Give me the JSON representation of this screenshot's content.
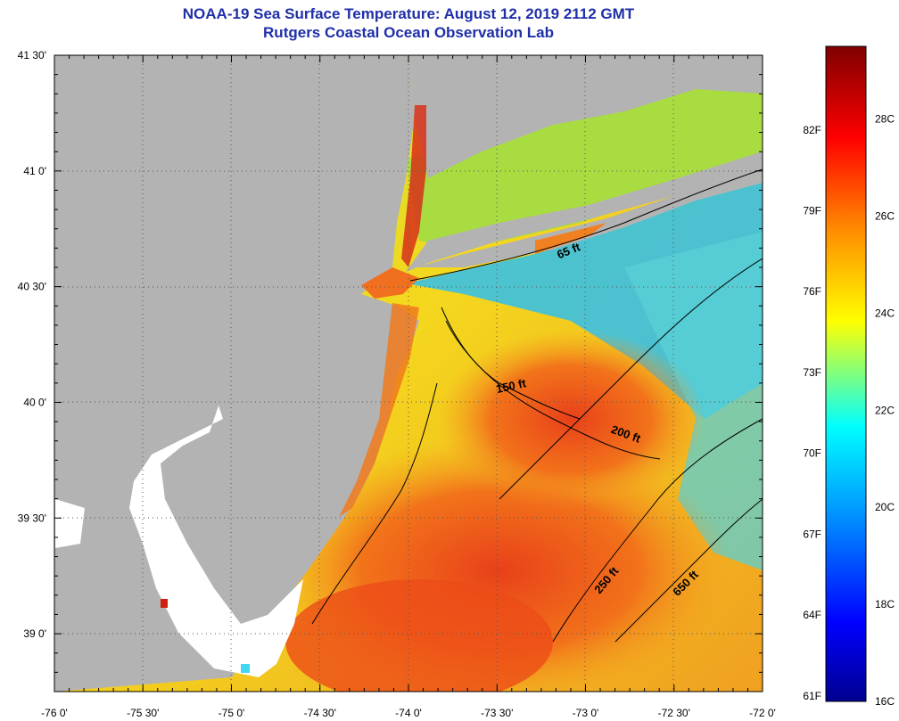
{
  "title": {
    "line1": "NOAA-19 Sea Surface Temperature:  August 12, 2019 2112 GMT",
    "line2": "Rutgers Coastal Ocean Observation Lab"
  },
  "map": {
    "lon_range": [
      -76,
      -72
    ],
    "lat_range": [
      38.75,
      41.5
    ],
    "lon_ticks": [
      {
        "value": -76.0,
        "label": "-76 0'"
      },
      {
        "value": -75.5,
        "label": "-75 30'"
      },
      {
        "value": -75.0,
        "label": "-75 0'"
      },
      {
        "value": -74.5,
        "label": "-74 30'"
      },
      {
        "value": -74.0,
        "label": "-74 0'"
      },
      {
        "value": -73.5,
        "label": "-73 30'"
      },
      {
        "value": -73.0,
        "label": "-73 0'"
      },
      {
        "value": -72.5,
        "label": "-72 30'"
      },
      {
        "value": -72.0,
        "label": "-72 0'"
      }
    ],
    "lat_ticks": [
      {
        "value": 41.5,
        "label": "41 30'"
      },
      {
        "value": 41.0,
        "label": "41 0'"
      },
      {
        "value": 40.5,
        "label": "40 30'"
      },
      {
        "value": 40.0,
        "label": "40 0'"
      },
      {
        "value": 39.5,
        "label": "39 30'"
      },
      {
        "value": 39.0,
        "label": "39 0'"
      }
    ],
    "contour_labels": [
      {
        "text": "65 ft",
        "lon": -73.15,
        "lat": 40.62,
        "angle": -22
      },
      {
        "text": "150 ft",
        "lon": -73.5,
        "lat": 40.04,
        "angle": -12
      },
      {
        "text": "200 ft",
        "lon": -72.86,
        "lat": 39.87,
        "angle": 20
      },
      {
        "text": "250 ft",
        "lon": -72.92,
        "lat": 39.17,
        "angle": -50
      },
      {
        "text": "650 ft",
        "lon": -72.48,
        "lat": 39.16,
        "angle": -45
      }
    ],
    "colors": {
      "land": "#b3b3b3",
      "nodata": "#ffffff",
      "warm": "#f05a14",
      "mid": "#f5d71e",
      "cool": "#1eb4f0"
    }
  },
  "colorbar": {
    "fahrenheit": [
      {
        "value": 61,
        "label": "61F"
      },
      {
        "value": 64,
        "label": "64F"
      },
      {
        "value": 67,
        "label": "67F"
      },
      {
        "value": 70,
        "label": "70F"
      },
      {
        "value": 73,
        "label": "73F"
      },
      {
        "value": 76,
        "label": "76F"
      },
      {
        "value": 79,
        "label": "79F"
      },
      {
        "value": 82,
        "label": "82F"
      }
    ],
    "celsius": [
      {
        "value": 16,
        "label": "16C"
      },
      {
        "value": 18,
        "label": "18C"
      },
      {
        "value": 20,
        "label": "20C"
      },
      {
        "value": 22,
        "label": "22C"
      },
      {
        "value": 24,
        "label": "24C"
      },
      {
        "value": 26,
        "label": "26C"
      },
      {
        "value": 28,
        "label": "28C"
      }
    ],
    "range_c": [
      16,
      29.5
    ]
  }
}
